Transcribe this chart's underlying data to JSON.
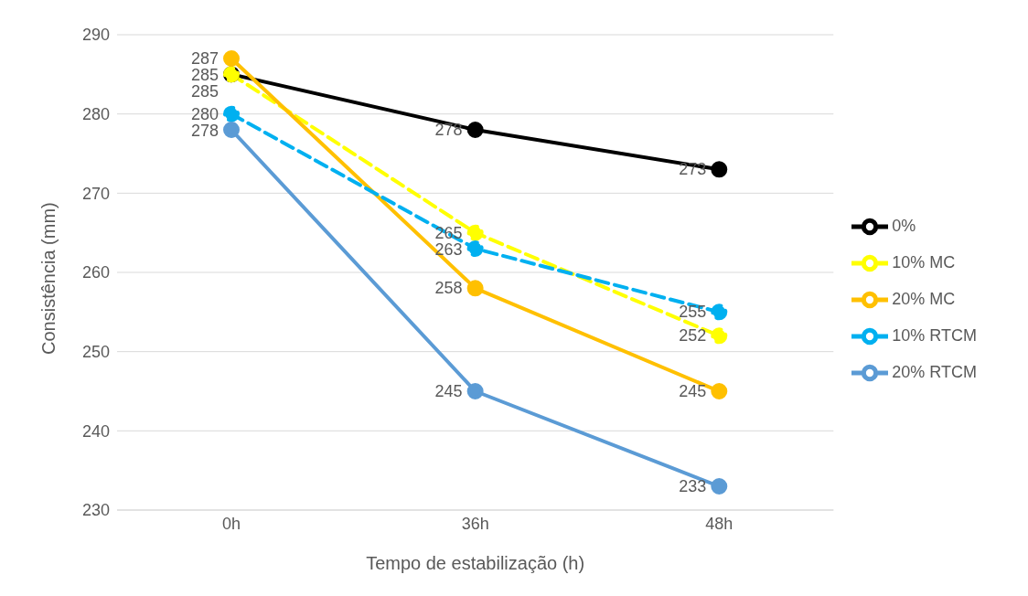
{
  "chart_data": {
    "type": "line",
    "xlabel": "Tempo de estabilização (h)",
    "ylabel": "Consistência (mm)",
    "categories": [
      "0h",
      "36h",
      "48h"
    ],
    "series": [
      {
        "name": "0%",
        "color": "#000000",
        "values": [
          285,
          278,
          273
        ],
        "line_style": "solid"
      },
      {
        "name": "10% MC",
        "color": "#ffff00",
        "values": [
          285,
          265,
          252
        ],
        "line_style": "dashed"
      },
      {
        "name": "20% MC",
        "color": "#ffc000",
        "values": [
          287,
          258,
          245
        ],
        "line_style": "solid"
      },
      {
        "name": "10% RTCM",
        "color": "#00b0f0",
        "values": [
          280,
          263,
          255
        ],
        "line_style": "dashed"
      },
      {
        "name": "20% RTCM",
        "color": "#5b9bd5",
        "values": [
          278,
          245,
          233
        ],
        "line_style": "solid"
      }
    ],
    "ylim": [
      230,
      290
    ],
    "yticks": [
      230,
      240,
      250,
      260,
      270,
      280,
      290
    ],
    "grid": "y",
    "legend": "right",
    "marker": "circle",
    "data_labels": true
  }
}
